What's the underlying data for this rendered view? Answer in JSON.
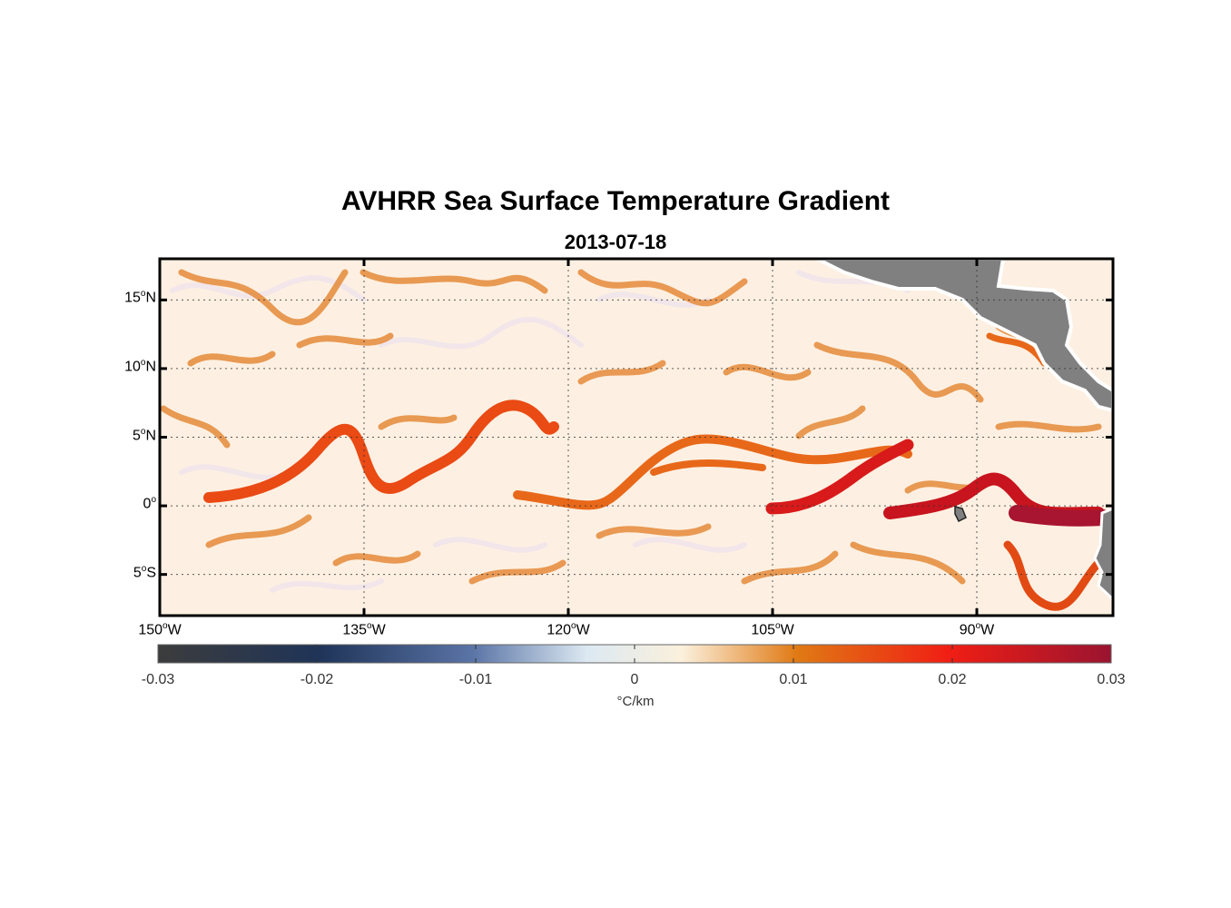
{
  "title": "AVHRR Sea Surface Temperature Gradient",
  "subtitle": "2013-07-18",
  "map": {
    "region": {
      "lon_min": -150,
      "lon_max": -80,
      "lat_min": -8,
      "lat_max": 18
    },
    "lat_ticks": [
      {
        "value": 15,
        "num": "15",
        "hemi": "N"
      },
      {
        "value": 10,
        "num": "10",
        "hemi": "N"
      },
      {
        "value": 5,
        "num": "5",
        "hemi": "N"
      },
      {
        "value": 0,
        "num": "0",
        "hemi": ""
      },
      {
        "value": -5,
        "num": "5",
        "hemi": "S"
      }
    ],
    "lon_ticks": [
      {
        "value": -150,
        "num": "150",
        "hemi": "W"
      },
      {
        "value": -135,
        "num": "135",
        "hemi": "W"
      },
      {
        "value": -120,
        "num": "120",
        "hemi": "W"
      },
      {
        "value": -105,
        "num": "105",
        "hemi": "W"
      },
      {
        "value": -90,
        "num": "90",
        "hemi": "W"
      }
    ],
    "grid": true,
    "land_color": "#808080",
    "ocean_background": "#fdf0e2"
  },
  "colorbar": {
    "min": -0.03,
    "max": 0.03,
    "tick_labels": [
      "-0.03",
      "-0.02",
      "-0.01",
      "0",
      "0.01",
      "0.02",
      "0.03"
    ],
    "unit": "°C/km",
    "colors": [
      "#3c3c3c",
      "#1f3458",
      "#5a74a6",
      "#dce9f2",
      "#fbf0dc",
      "#e07a14",
      "#f01e14",
      "#9a1430"
    ]
  }
}
